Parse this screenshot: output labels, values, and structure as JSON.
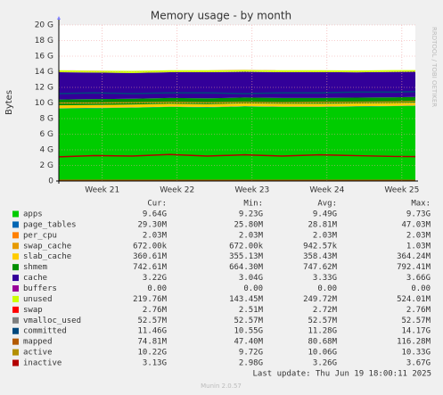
{
  "chart_data": {
    "type": "area",
    "title": "Memory usage - by month",
    "y_label": "Bytes",
    "side_text": "RRDTOOL / TOBI OETIKER",
    "x": [
      20.42,
      20.9,
      21.4,
      21.9,
      22.4,
      22.9,
      23.4,
      23.9,
      24.4,
      24.9,
      25.18
    ],
    "xlim": [
      20.42,
      25.18
    ],
    "xticks": [
      {
        "value": 21,
        "label": "Week 21"
      },
      {
        "value": 22,
        "label": "Week 22"
      },
      {
        "value": 23,
        "label": "Week 23"
      },
      {
        "value": 24,
        "label": "Week 24"
      },
      {
        "value": 25,
        "label": "Week 25"
      }
    ],
    "ylim": [
      0,
      20
    ],
    "yticks": [
      {
        "value": 0,
        "label": "0"
      },
      {
        "value": 2,
        "label": "2 G"
      },
      {
        "value": 4,
        "label": "4 G"
      },
      {
        "value": 6,
        "label": "6 G"
      },
      {
        "value": 8,
        "label": "8 G"
      },
      {
        "value": 10,
        "label": "10 G"
      },
      {
        "value": 12,
        "label": "12 G"
      },
      {
        "value": 14,
        "label": "14 G"
      },
      {
        "value": 16,
        "label": "16 G"
      },
      {
        "value": 18,
        "label": "18 G"
      },
      {
        "value": 20,
        "label": "20 G"
      }
    ],
    "grid": true,
    "columns": [
      "Cur:",
      "Min:",
      "Avg:",
      "Max:"
    ],
    "series": [
      {
        "name": "apps",
        "style": "area",
        "color": "#00CC00",
        "values": [
          9.3,
          9.35,
          9.4,
          9.5,
          9.45,
          9.55,
          9.5,
          9.5,
          9.55,
          9.6,
          9.64
        ],
        "stats": [
          "9.64G",
          "9.23G",
          "9.49G",
          "9.73G"
        ]
      },
      {
        "name": "page_tables",
        "style": "area",
        "color": "#0066B3",
        "values": [
          0.03,
          0.03,
          0.03,
          0.03,
          0.03,
          0.03,
          0.03,
          0.03,
          0.03,
          0.03,
          0.03
        ],
        "stats": [
          "29.30M",
          "25.80M",
          "28.81M",
          "47.03M"
        ]
      },
      {
        "name": "per_cpu",
        "style": "area",
        "color": "#FF8000",
        "values": [
          0.002,
          0.002,
          0.002,
          0.002,
          0.002,
          0.002,
          0.002,
          0.002,
          0.002,
          0.002,
          0.002
        ],
        "stats": [
          "2.03M",
          "2.03M",
          "2.03M",
          "2.03M"
        ]
      },
      {
        "name": "swap_cache",
        "style": "area",
        "color": "#E69A00",
        "values": [
          0.001,
          0.001,
          0.001,
          0.001,
          0.001,
          0.001,
          0.001,
          0.001,
          0.001,
          0.001,
          0.001
        ],
        "stats": [
          "672.00k",
          "672.00k",
          "942.57k",
          "1.03M"
        ]
      },
      {
        "name": "slab_cache",
        "style": "area",
        "color": "#FFCC00",
        "values": [
          0.36,
          0.36,
          0.36,
          0.36,
          0.36,
          0.36,
          0.36,
          0.36,
          0.36,
          0.36,
          0.36
        ],
        "stats": [
          "360.61M",
          "355.13M",
          "358.43M",
          "364.24M"
        ]
      },
      {
        "name": "shmem",
        "style": "area",
        "color": "#008F00",
        "values": [
          0.75,
          0.75,
          0.75,
          0.75,
          0.75,
          0.75,
          0.75,
          0.75,
          0.74,
          0.74,
          0.74
        ],
        "stats": [
          "742.61M",
          "664.30M",
          "747.62M",
          "792.41M"
        ]
      },
      {
        "name": "cache",
        "style": "area",
        "color": "#330099",
        "values": [
          3.5,
          3.4,
          3.3,
          3.3,
          3.35,
          3.3,
          3.3,
          3.3,
          3.25,
          3.25,
          3.22
        ],
        "stats": [
          "3.22G",
          "3.04G",
          "3.33G",
          "3.66G"
        ]
      },
      {
        "name": "buffers",
        "style": "area",
        "color": "#990099",
        "values": [
          0,
          0,
          0,
          0,
          0,
          0,
          0,
          0,
          0,
          0,
          0
        ],
        "stats": [
          "0.00",
          "0.00",
          "0.00",
          "0.00"
        ]
      },
      {
        "name": "unused",
        "style": "area",
        "color": "#CCFF00",
        "values": [
          0.25,
          0.24,
          0.27,
          0.25,
          0.26,
          0.24,
          0.25,
          0.26,
          0.24,
          0.23,
          0.22
        ],
        "stats": [
          "219.76M",
          "143.45M",
          "249.72M",
          "524.01M"
        ]
      },
      {
        "name": "swap",
        "style": "area",
        "color": "#FF0000",
        "values": [
          0.003,
          0.003,
          0.003,
          0.003,
          0.003,
          0.003,
          0.003,
          0.003,
          0.003,
          0.003,
          0.003
        ],
        "stats": [
          "2.76M",
          "2.51M",
          "2.72M",
          "2.76M"
        ]
      },
      {
        "name": "vmalloc_used",
        "style": "line",
        "color": "#808080",
        "values": [
          0.05,
          0.05,
          0.05,
          0.05,
          0.05,
          0.05,
          0.05,
          0.05,
          0.05,
          0.05,
          0.05
        ],
        "stats": [
          "52.57M",
          "52.57M",
          "52.57M",
          "52.57M"
        ]
      },
      {
        "name": "committed",
        "style": "line",
        "color": "#00487D",
        "values": [
          11.2,
          11.3,
          11.2,
          11.3,
          11.3,
          11.2,
          11.3,
          11.3,
          11.4,
          11.4,
          11.46
        ],
        "stats": [
          "11.46G",
          "10.55G",
          "11.28G",
          "14.17G"
        ]
      },
      {
        "name": "mapped",
        "style": "line",
        "color": "#B35A00",
        "values": [
          0.08,
          0.08,
          0.08,
          0.08,
          0.08,
          0.08,
          0.08,
          0.08,
          0.08,
          0.08,
          0.07
        ],
        "stats": [
          "74.81M",
          "47.40M",
          "80.68M",
          "116.28M"
        ]
      },
      {
        "name": "active",
        "style": "line",
        "color": "#B38F00",
        "values": [
          10.0,
          10.0,
          10.05,
          10.1,
          10.05,
          10.1,
          10.05,
          10.1,
          10.1,
          10.15,
          10.22
        ],
        "stats": [
          "10.22G",
          "9.72G",
          "10.06G",
          "10.33G"
        ]
      },
      {
        "name": "inactive",
        "style": "line",
        "color": "#B30000",
        "values": [
          3.1,
          3.25,
          3.2,
          3.4,
          3.2,
          3.35,
          3.2,
          3.35,
          3.25,
          3.15,
          3.13
        ],
        "stats": [
          "3.13G",
          "2.98G",
          "3.26G",
          "3.67G"
        ]
      }
    ],
    "footer": "Last update: Thu Jun 19 18:00:11 2025",
    "version": "Munin 2.0.57"
  }
}
